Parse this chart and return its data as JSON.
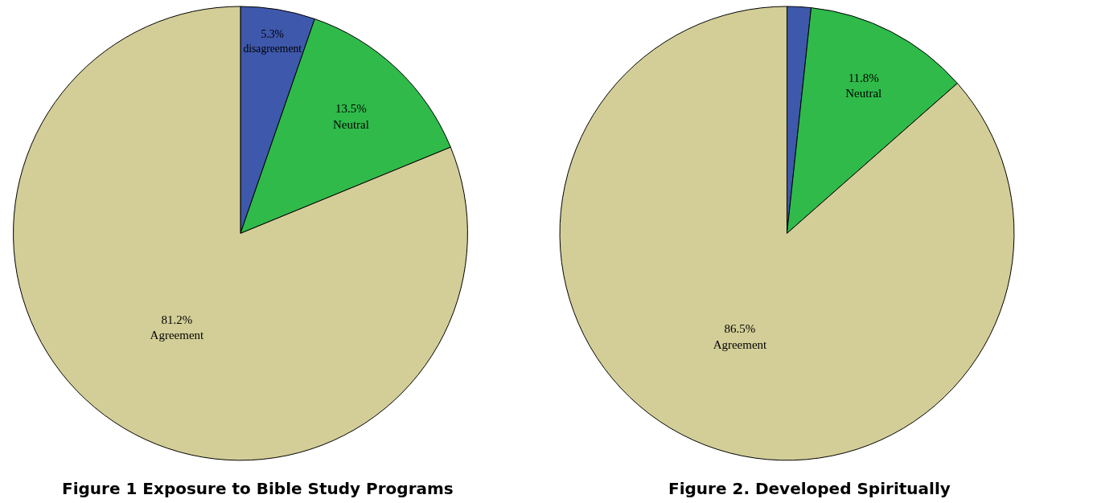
{
  "chart_data": [
    {
      "type": "pie",
      "title": "Figure 1 Exposure to Bible Study Programs",
      "categories": [
        "disagreement",
        "Neutral",
        "Agreement"
      ],
      "values": [
        5.3,
        13.5,
        81.2
      ],
      "value_labels": [
        "5.3%",
        "13.5%",
        "81.2%"
      ],
      "colors": [
        "#3e58ac",
        "#2fba4a",
        "#d3ce97"
      ]
    },
    {
      "type": "pie",
      "title": "Figure 2. Developed Spiritually",
      "categories": [
        null,
        "Neutral",
        "Agreement"
      ],
      "values": [
        1.7,
        11.8,
        86.5
      ],
      "value_labels": [
        null,
        "11.8%",
        "86.5%"
      ],
      "colors": [
        "#3e58ac",
        "#2fba4a",
        "#d3ce97"
      ]
    }
  ]
}
